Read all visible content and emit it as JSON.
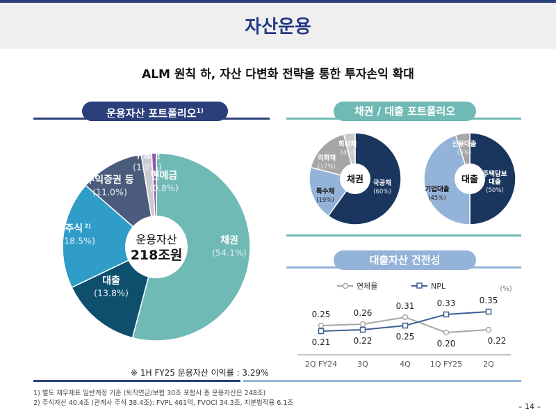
{
  "header": {
    "title": "자산운용",
    "subtitle": "ALM 원칙 하, 자산 다변화 전략을 통한 투자손익 확대"
  },
  "portfolio": {
    "title": "운용자산 포트폴리오",
    "title_sup": "1)",
    "center_label": "운용자산",
    "center_value": "218조원",
    "yield_note": "※ 1H FY25 운용자산 이익률 : 3.29%",
    "slices": [
      {
        "label": "채권",
        "pct": "(54.1%)",
        "value": 54.1,
        "color": "#70bab6"
      },
      {
        "label": "대출",
        "pct": "(13.8%)",
        "value": 13.8,
        "color": "#0f4f6e"
      },
      {
        "label": "주식",
        "sup": "2)",
        "pct": "(18.5%)",
        "value": 18.5,
        "color": "#2f9dc7"
      },
      {
        "label": "수익증권 등",
        "pct": "(11.0%)",
        "value": 11.0,
        "color": "#4a5b7c"
      },
      {
        "label": "부동산",
        "pct": "(1.8%)",
        "value": 1.8,
        "color": "#c9c9cf"
      },
      {
        "label": "현예금",
        "pct": "(0.8%)",
        "value": 0.8,
        "color": "#8d5aa6"
      }
    ]
  },
  "bond_loan": {
    "title": "채권 / 대출 포트폴리오",
    "bond": {
      "center": "채권",
      "slices": [
        {
          "label": "국공채",
          "pct": "(60%)",
          "value": 60,
          "color": "#1b365e"
        },
        {
          "label": "특수채",
          "pct": "(19%)",
          "value": 19,
          "color": "#94b3d8"
        },
        {
          "label": "외화채",
          "pct": "(17%)",
          "value": 17,
          "color": "#a6a6a6"
        },
        {
          "label": "회사채",
          "pct": "(4%)",
          "value": 4,
          "color": "#cacaca"
        }
      ]
    },
    "loan": {
      "center": "대출",
      "slices": [
        {
          "label": "주택담보 대출",
          "pct": "(50%)",
          "value": 50,
          "color": "#1b365e"
        },
        {
          "label": "기업대출",
          "pct": "(45%)",
          "value": 45,
          "color": "#94b3d8"
        },
        {
          "label": "신용대출",
          "pct": "(5%)",
          "value": 5,
          "color": "#a6a6a6"
        }
      ]
    }
  },
  "soundness": {
    "title": "대출자산 건전성",
    "unit": "(%)"
  },
  "chart_data": {
    "type": "line",
    "title": "대출자산 건전성",
    "ylabel": "(%)",
    "categories": [
      "2Q FY24",
      "3Q",
      "4Q",
      "1Q FY25",
      "2Q"
    ],
    "series": [
      {
        "name": "연체율",
        "values": [
          0.25,
          0.26,
          0.31,
          0.2,
          0.22
        ],
        "color": "#a6a6a6"
      },
      {
        "name": "NPL",
        "values": [
          0.21,
          0.22,
          0.25,
          0.33,
          0.35
        ],
        "color": "#3d5f95"
      }
    ]
  },
  "footnotes": [
    "1) 별도 재무제표 일반계정 기준 (퇴직연금/보험 30조 포함시 총 운용자산은 248조)",
    "2) 주식자산 40.4조 (관계사 주식 38.4조): FVPL 461억, FVOCI 34.3조, 지분법적용 6.1조"
  ],
  "page_number": "– 14 –"
}
